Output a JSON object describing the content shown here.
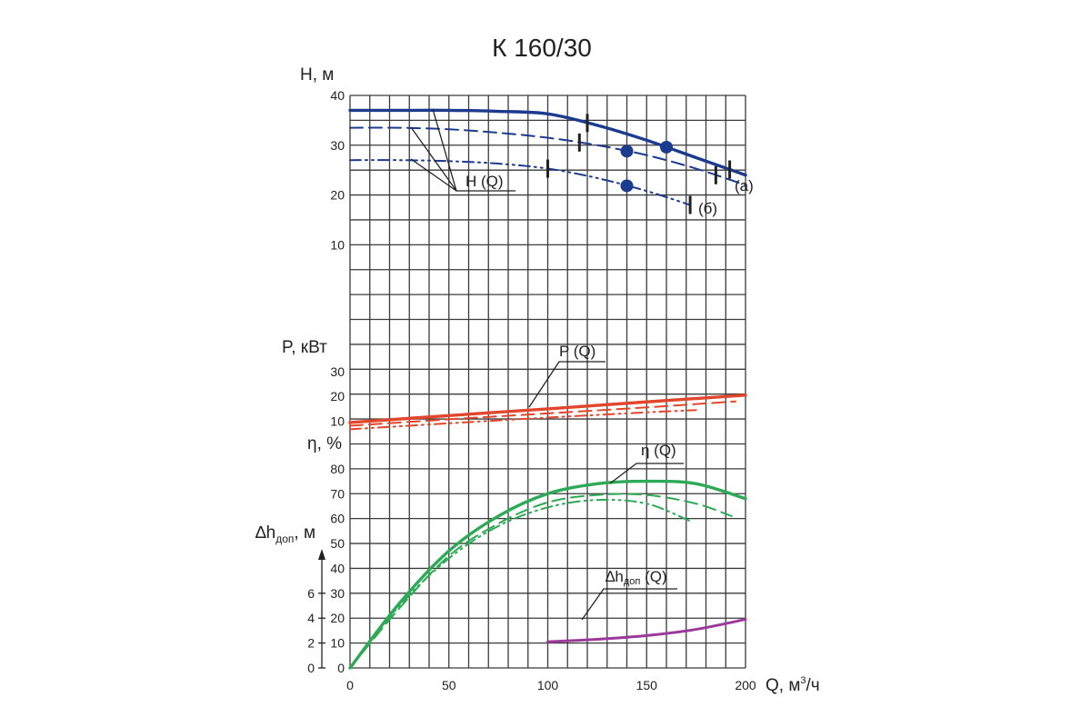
{
  "chart_data": {
    "type": "line",
    "title": "К 160/30",
    "x": {
      "label": "Q,  м",
      "label_sup": "3",
      "label_tail": "/ч",
      "range": [
        0,
        200
      ],
      "ticks": [
        0,
        50,
        100,
        150,
        200
      ],
      "tick_labels": [
        "0",
        "50",
        "100",
        "150",
        "200"
      ]
    },
    "head_axis": {
      "label": "H, м",
      "range": [
        0,
        40
      ],
      "ticks": [
        10,
        20,
        30,
        40
      ],
      "tick_labels": [
        "10",
        "20",
        "30",
        "40"
      ]
    },
    "power_axis": {
      "label": "P, кВт",
      "range": [
        0,
        30
      ],
      "ticks": [
        10,
        20,
        30
      ],
      "tick_labels": [
        "10",
        "20",
        "30"
      ]
    },
    "efficiency_axis": {
      "label": "η, %",
      "range": [
        0,
        80
      ],
      "ticks": [
        0,
        10,
        20,
        30,
        40,
        50,
        60,
        70,
        80
      ],
      "tick_labels": [
        "0",
        "10",
        "20",
        "30",
        "40",
        "50",
        "60",
        "70",
        "80"
      ]
    },
    "npsh_axis": {
      "label_main": "∆h",
      "label_sub": "доп",
      "label_tail": ", м",
      "range": [
        0,
        6
      ],
      "ticks": [
        0,
        2,
        4,
        6
      ],
      "tick_labels": [
        "0",
        "2",
        "4",
        "6"
      ]
    },
    "curve_labels": {
      "head": "H (Q)",
      "power": "P (Q)",
      "efficiency": "η (Q)",
      "npsh_main": "∆h",
      "npsh_sub": "доп",
      "npsh_tail": " (Q)",
      "variant_a": "(а)",
      "variant_b": "(б)"
    },
    "series": [
      {
        "group": "head",
        "style": "solid",
        "color": "#1c3a8e",
        "x": [
          0,
          25,
          50,
          75,
          100,
          125,
          150,
          175,
          200
        ],
        "y": [
          37,
          37,
          37,
          36.8,
          36.3,
          34,
          31,
          27.5,
          24
        ]
      },
      {
        "group": "head",
        "style": "dash",
        "color": "#1c3a8e",
        "x": [
          0,
          25,
          50,
          75,
          100,
          125,
          150,
          175,
          200
        ],
        "y": [
          33.5,
          33.5,
          33.2,
          32.5,
          31.5,
          30,
          28,
          25.3,
          22
        ]
      },
      {
        "group": "head",
        "style": "dashdotdot",
        "color": "#1c3a8e",
        "x": [
          0,
          25,
          50,
          75,
          100,
          125,
          150,
          172
        ],
        "y": [
          27,
          27,
          26.8,
          26.3,
          25.3,
          23.4,
          20.8,
          18
        ]
      },
      {
        "group": "power",
        "style": "solid",
        "color": "#e2462c",
        "x": [
          0,
          50,
          100,
          150,
          200
        ],
        "y": [
          9.5,
          12.3,
          15,
          17.8,
          20.5
        ]
      },
      {
        "group": "power",
        "style": "dash",
        "color": "#e2462c",
        "x": [
          0,
          50,
          100,
          150,
          195
        ],
        "y": [
          8.2,
          10.8,
          13.2,
          15.6,
          18
        ]
      },
      {
        "group": "power",
        "style": "dashdotdot",
        "color": "#e2462c",
        "x": [
          0,
          50,
          100,
          150,
          175
        ],
        "y": [
          6.8,
          9.2,
          11.5,
          13.6,
          14.5
        ]
      },
      {
        "group": "efficiency",
        "style": "solid",
        "color": "#2daa55",
        "x": [
          0,
          25,
          50,
          75,
          100,
          125,
          150,
          175,
          200
        ],
        "y": [
          0,
          26,
          47,
          61,
          70,
          74,
          75,
          74,
          68
        ]
      },
      {
        "group": "efficiency",
        "style": "dash",
        "color": "#2daa55",
        "x": [
          0,
          25,
          50,
          75,
          100,
          125,
          150,
          175,
          193
        ],
        "y": [
          0,
          24,
          45,
          58,
          66.5,
          69.5,
          69.5,
          66,
          61
        ]
      },
      {
        "group": "efficiency",
        "style": "dashdotdot",
        "color": "#2daa55",
        "x": [
          0,
          25,
          50,
          75,
          100,
          125,
          150,
          172
        ],
        "y": [
          0,
          25,
          44,
          57,
          64.5,
          67.5,
          66,
          59
        ]
      },
      {
        "group": "npsh",
        "style": "solid",
        "color": "#9c3a9c",
        "x": [
          100,
          125,
          150,
          175,
          200
        ],
        "y": [
          2.1,
          2.3,
          2.6,
          3.1,
          3.9
        ]
      }
    ],
    "markers": [
      {
        "type": "tick",
        "series": 0,
        "x": [
          120,
          192
        ]
      },
      {
        "type": "tick",
        "series": 1,
        "x": [
          116,
          185
        ]
      },
      {
        "type": "tick",
        "series": 2,
        "x": [
          100,
          172
        ]
      },
      {
        "type": "dot",
        "series": 0,
        "x": [
          160
        ]
      },
      {
        "type": "dot",
        "series": 1,
        "x": [
          140
        ]
      },
      {
        "type": "dot",
        "series": 2,
        "x": [
          140
        ]
      }
    ],
    "colors": {
      "head": "#1c3a8e",
      "power": "#e2462c",
      "efficiency": "#2daa55",
      "npsh": "#9c3a9c",
      "grid": "#3a3a3a"
    },
    "grid": true
  }
}
